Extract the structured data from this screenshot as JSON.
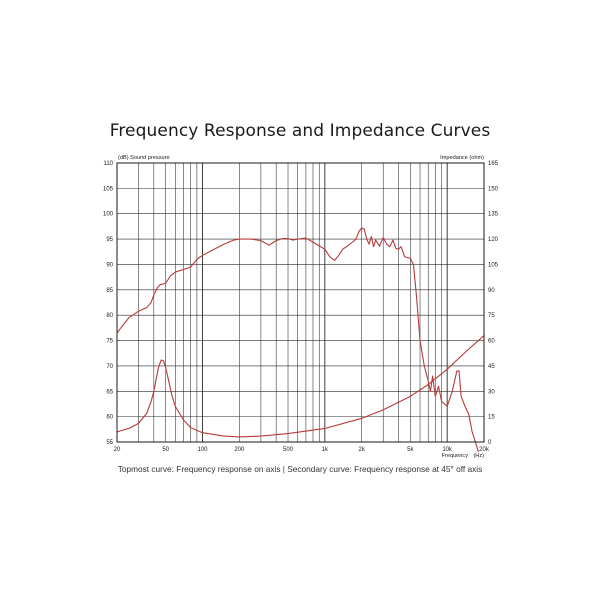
{
  "title": "Frequency Response and Impedance Curves",
  "caption": "Topmost curve: Frequency response on axis | Secondary curve: Frequency response at 45° off axis",
  "chart_data": {
    "type": "line",
    "title": "Frequency Response and Impedance Curves",
    "x_scale": "log",
    "xlim": [
      20,
      20000
    ],
    "xlabel": "Frequency",
    "xunit": "(Hz)",
    "x_tick_labels": [
      {
        "value": 20,
        "label": "20"
      },
      {
        "value": 50,
        "label": "50"
      },
      {
        "value": 100,
        "label": "100"
      },
      {
        "value": 200,
        "label": "200"
      },
      {
        "value": 500,
        "label": "500"
      },
      {
        "value": 1000,
        "label": "1k"
      },
      {
        "value": 2000,
        "label": "2k"
      },
      {
        "value": 5000,
        "label": "5k"
      },
      {
        "value": 10000,
        "label": "10k"
      },
      {
        "value": 20000,
        "label": "20k"
      }
    ],
    "ylim_left": [
      55,
      110
    ],
    "y_left_label": "(dB)  Sound pressure",
    "y_left_ticks": [
      55,
      60,
      65,
      70,
      75,
      80,
      85,
      90,
      95,
      100,
      105,
      110
    ],
    "ylim_right": [
      0,
      165
    ],
    "y_right_label": "Impedance  (ohm)",
    "y_right_ticks": [
      0,
      15,
      30,
      45,
      60,
      75,
      90,
      105,
      120,
      135,
      150,
      165
    ],
    "grid": true,
    "colors": {
      "curve": "#b83a3a",
      "grid": "#2a2a2a",
      "frame": "#1a1a1a"
    },
    "series": [
      {
        "axis": "left",
        "points": [
          [
            20,
            76.5
          ],
          [
            22,
            77.8
          ],
          [
            25,
            79.5
          ],
          [
            28,
            80.3
          ],
          [
            30,
            80.8
          ],
          [
            35,
            81.5
          ],
          [
            38,
            82.5
          ],
          [
            40,
            84
          ],
          [
            43,
            85.5
          ],
          [
            45,
            86
          ],
          [
            50,
            86.3
          ],
          [
            55,
            87.8
          ],
          [
            60,
            88.5
          ],
          [
            70,
            89
          ],
          [
            80,
            89.5
          ],
          [
            90,
            91
          ],
          [
            100,
            91.8
          ],
          [
            120,
            92.8
          ],
          [
            150,
            94
          ],
          [
            180,
            94.8
          ],
          [
            200,
            95
          ],
          [
            250,
            95
          ],
          [
            300,
            94.7
          ],
          [
            350,
            93.8
          ],
          [
            400,
            94.7
          ],
          [
            450,
            95.1
          ],
          [
            500,
            95.1
          ],
          [
            550,
            94.8
          ],
          [
            600,
            95
          ],
          [
            700,
            95.2
          ],
          [
            800,
            94.4
          ],
          [
            1000,
            93
          ],
          [
            1100,
            91.5
          ],
          [
            1200,
            90.8
          ],
          [
            1300,
            91.8
          ],
          [
            1400,
            93
          ],
          [
            1500,
            93.5
          ],
          [
            1600,
            94
          ],
          [
            1700,
            94.5
          ],
          [
            1800,
            95
          ],
          [
            1900,
            96.5
          ],
          [
            2000,
            97.2
          ],
          [
            2100,
            97
          ],
          [
            2200,
            95
          ],
          [
            2300,
            94
          ],
          [
            2400,
            95.5
          ],
          [
            2500,
            93.5
          ],
          [
            2600,
            94.8
          ],
          [
            2800,
            93.6
          ],
          [
            3000,
            95.3
          ],
          [
            3200,
            94
          ],
          [
            3400,
            93.5
          ],
          [
            3600,
            94.8
          ],
          [
            3800,
            93.2
          ],
          [
            4000,
            93
          ],
          [
            4200,
            93.5
          ],
          [
            4500,
            91.5
          ],
          [
            5000,
            91.2
          ],
          [
            5300,
            90
          ],
          [
            5600,
            84
          ],
          [
            6000,
            75
          ],
          [
            6500,
            70
          ],
          [
            7000,
            67
          ],
          [
            7300,
            65
          ],
          [
            7600,
            68
          ],
          [
            8000,
            64
          ],
          [
            8500,
            66
          ],
          [
            9000,
            63
          ],
          [
            10000,
            62
          ],
          [
            11000,
            65
          ],
          [
            12000,
            69
          ],
          [
            12500,
            69
          ],
          [
            13000,
            64
          ],
          [
            14000,
            62
          ],
          [
            15000,
            60.5
          ],
          [
            16000,
            57
          ],
          [
            17000,
            55
          ],
          [
            18000,
            53
          ]
        ]
      },
      {
        "axis": "right",
        "points": [
          [
            20,
            6
          ],
          [
            25,
            8
          ],
          [
            30,
            11
          ],
          [
            35,
            17
          ],
          [
            38,
            24
          ],
          [
            40,
            30
          ],
          [
            42,
            38
          ],
          [
            44,
            45
          ],
          [
            46,
            48.5
          ],
          [
            48,
            48
          ],
          [
            50,
            44
          ],
          [
            53,
            36
          ],
          [
            56,
            28
          ],
          [
            60,
            21
          ],
          [
            70,
            13
          ],
          [
            80,
            8.5
          ],
          [
            100,
            5.5
          ],
          [
            150,
            3.5
          ],
          [
            200,
            3
          ],
          [
            300,
            3.5
          ],
          [
            500,
            5
          ],
          [
            1000,
            8
          ],
          [
            2000,
            14
          ],
          [
            3000,
            19
          ],
          [
            5000,
            27
          ],
          [
            7000,
            34
          ],
          [
            10000,
            43
          ],
          [
            14000,
            53
          ],
          [
            18000,
            60
          ],
          [
            20000,
            63
          ]
        ]
      }
    ]
  }
}
